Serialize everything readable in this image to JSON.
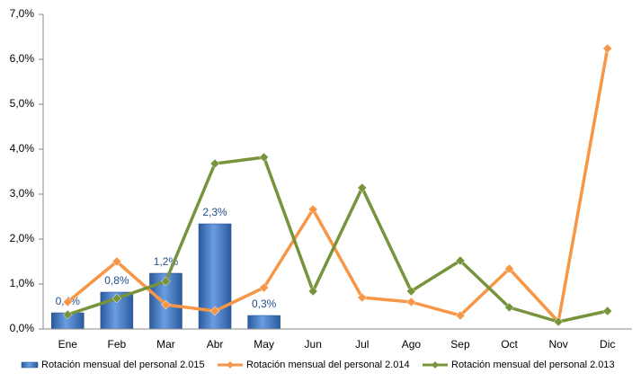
{
  "chart_data": {
    "type": "bar-line",
    "categories": [
      "Ene",
      "Feb",
      "Mar",
      "Abr",
      "May",
      "Jun",
      "Jul",
      "Ago",
      "Sep",
      "Oct",
      "Nov",
      "Dic"
    ],
    "series": [
      {
        "name": "Rotación mensual del personal 2.015",
        "type": "bar",
        "color": "#3a74c4",
        "values": [
          0.36,
          0.82,
          1.24,
          2.34,
          0.3,
          null,
          null,
          null,
          null,
          null,
          null,
          null
        ],
        "value_labels": [
          "0,4%",
          "0,8%",
          "1,2%",
          "2,3%",
          "0,3%",
          null,
          null,
          null,
          null,
          null,
          null,
          null
        ]
      },
      {
        "name": "Rotación mensual del personal 2.014",
        "type": "line",
        "color": "#f79646",
        "values": [
          0.6,
          1.5,
          0.54,
          0.4,
          0.92,
          2.66,
          0.7,
          0.6,
          0.3,
          1.34,
          0.16,
          6.24
        ]
      },
      {
        "name": "Rotación mensual del personal 2.013",
        "type": "line",
        "color": "#77933c",
        "values": [
          0.32,
          0.68,
          1.06,
          3.68,
          3.82,
          0.84,
          3.14,
          0.84,
          1.52,
          0.48,
          0.16,
          0.4
        ]
      }
    ],
    "ylim": [
      0,
      7
    ],
    "yticks": [
      {
        "value": 0,
        "label": "0,0%"
      },
      {
        "value": 1,
        "label": "1,0%"
      },
      {
        "value": 2,
        "label": "2,0%"
      },
      {
        "value": 3,
        "label": "3,0%"
      },
      {
        "value": 4,
        "label": "4,0%"
      },
      {
        "value": 5,
        "label": "5,0%"
      },
      {
        "value": 6,
        "label": "6,0%"
      },
      {
        "value": 7,
        "label": "7,0%"
      }
    ],
    "grid": false,
    "legend": "bottom"
  }
}
